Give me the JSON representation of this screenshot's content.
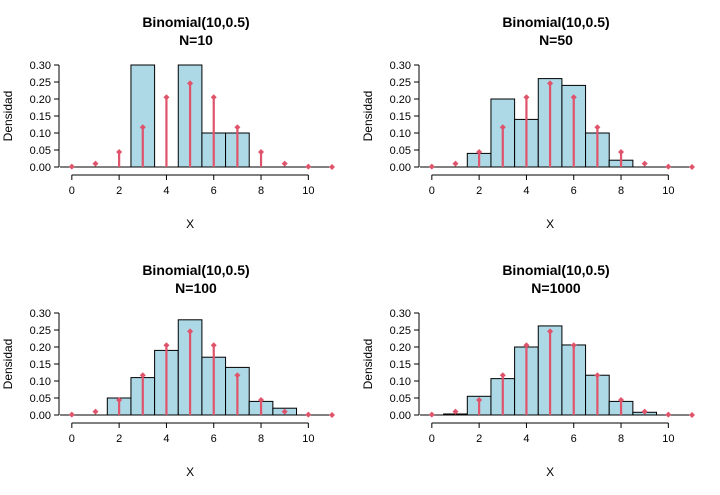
{
  "colors": {
    "bar_fill": "#add8e6",
    "bar_stroke": "#000000",
    "pmf": "#df536b",
    "axis": "#000000"
  },
  "chart_data": [
    {
      "type": "bar",
      "title": "Binomial(10,0.5)",
      "subtitle": "N=10",
      "xlabel": "X",
      "ylabel": "Densidad",
      "xlim": [
        -0.5,
        11
      ],
      "ylim": [
        0,
        0.3
      ],
      "xticks": [
        0,
        2,
        4,
        6,
        8,
        10
      ],
      "yticks": [
        "0.00",
        "0.05",
        "0.10",
        "0.15",
        "0.20",
        "0.25",
        "0.30"
      ],
      "histogram": {
        "bins": [
          [
            2.5,
            3.5
          ],
          [
            3.5,
            4.5
          ],
          [
            4.5,
            5.5
          ],
          [
            5.5,
            6.5
          ],
          [
            6.5,
            7.5
          ]
        ],
        "values": [
          0.3,
          0.0,
          0.3,
          0.1,
          0.1
        ]
      },
      "pmf": {
        "x": [
          0,
          1,
          2,
          3,
          4,
          5,
          6,
          7,
          8,
          9,
          10,
          11
        ],
        "y": [
          0.001,
          0.01,
          0.044,
          0.117,
          0.205,
          0.246,
          0.205,
          0.117,
          0.044,
          0.01,
          0.001,
          0.0
        ]
      }
    },
    {
      "type": "bar",
      "title": "Binomial(10,0.5)",
      "subtitle": "N=50",
      "xlabel": "X",
      "ylabel": "Densidad",
      "xlim": [
        -0.5,
        11
      ],
      "ylim": [
        0,
        0.3
      ],
      "xticks": [
        0,
        2,
        4,
        6,
        8,
        10
      ],
      "yticks": [
        "0.00",
        "0.05",
        "0.10",
        "0.15",
        "0.20",
        "0.25",
        "0.30"
      ],
      "histogram": {
        "bins": [
          [
            1.5,
            2.5
          ],
          [
            2.5,
            3.5
          ],
          [
            3.5,
            4.5
          ],
          [
            4.5,
            5.5
          ],
          [
            5.5,
            6.5
          ],
          [
            6.5,
            7.5
          ],
          [
            7.5,
            8.5
          ]
        ],
        "values": [
          0.04,
          0.2,
          0.14,
          0.26,
          0.24,
          0.1,
          0.02
        ]
      },
      "pmf": {
        "x": [
          0,
          1,
          2,
          3,
          4,
          5,
          6,
          7,
          8,
          9,
          10,
          11
        ],
        "y": [
          0.001,
          0.01,
          0.044,
          0.117,
          0.205,
          0.246,
          0.205,
          0.117,
          0.044,
          0.01,
          0.001,
          0.0
        ]
      }
    },
    {
      "type": "bar",
      "title": "Binomial(10,0.5)",
      "subtitle": "N=100",
      "xlabel": "X",
      "ylabel": "Densidad",
      "xlim": [
        -0.5,
        11
      ],
      "ylim": [
        0,
        0.3
      ],
      "xticks": [
        0,
        2,
        4,
        6,
        8,
        10
      ],
      "yticks": [
        "0.00",
        "0.05",
        "0.10",
        "0.15",
        "0.20",
        "0.25",
        "0.30"
      ],
      "histogram": {
        "bins": [
          [
            1.5,
            2.5
          ],
          [
            2.5,
            3.5
          ],
          [
            3.5,
            4.5
          ],
          [
            4.5,
            5.5
          ],
          [
            5.5,
            6.5
          ],
          [
            6.5,
            7.5
          ],
          [
            7.5,
            8.5
          ],
          [
            8.5,
            9.5
          ]
        ],
        "values": [
          0.05,
          0.11,
          0.19,
          0.28,
          0.17,
          0.14,
          0.04,
          0.02
        ]
      },
      "pmf": {
        "x": [
          0,
          1,
          2,
          3,
          4,
          5,
          6,
          7,
          8,
          9,
          10,
          11
        ],
        "y": [
          0.001,
          0.01,
          0.044,
          0.117,
          0.205,
          0.246,
          0.205,
          0.117,
          0.044,
          0.01,
          0.001,
          0.0
        ]
      }
    },
    {
      "type": "bar",
      "title": "Binomial(10,0.5)",
      "subtitle": "N=1000",
      "xlabel": "X",
      "ylabel": "Densidad",
      "xlim": [
        -0.5,
        11
      ],
      "ylim": [
        0,
        0.3
      ],
      "xticks": [
        0,
        2,
        4,
        6,
        8,
        10
      ],
      "yticks": [
        "0.00",
        "0.05",
        "0.10",
        "0.15",
        "0.20",
        "0.25",
        "0.30"
      ],
      "histogram": {
        "bins": [
          [
            0.5,
            1.5
          ],
          [
            1.5,
            2.5
          ],
          [
            2.5,
            3.5
          ],
          [
            3.5,
            4.5
          ],
          [
            4.5,
            5.5
          ],
          [
            5.5,
            6.5
          ],
          [
            6.5,
            7.5
          ],
          [
            7.5,
            8.5
          ],
          [
            8.5,
            9.5
          ]
        ],
        "values": [
          0.003,
          0.055,
          0.107,
          0.2,
          0.262,
          0.206,
          0.117,
          0.04,
          0.008
        ]
      },
      "pmf": {
        "x": [
          0,
          1,
          2,
          3,
          4,
          5,
          6,
          7,
          8,
          9,
          10,
          11
        ],
        "y": [
          0.001,
          0.01,
          0.044,
          0.117,
          0.205,
          0.246,
          0.205,
          0.117,
          0.044,
          0.01,
          0.001,
          0.0
        ]
      }
    }
  ]
}
